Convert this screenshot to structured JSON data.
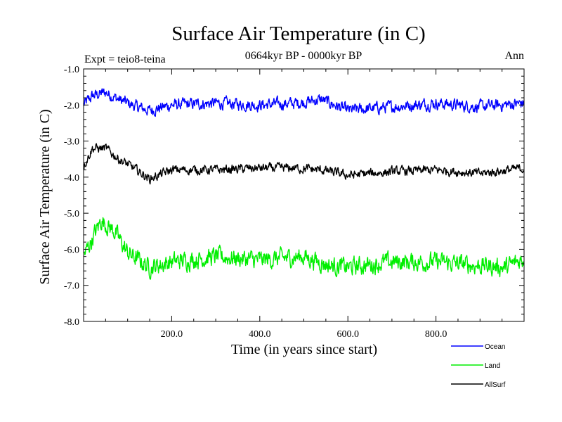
{
  "chart_data": {
    "type": "line",
    "title": "Surface Air Temperature (in C)",
    "subtitle": "0664kyr BP - 0000kyr BP",
    "experiment_label": "Expt = teio8-teina",
    "season_label": "Ann",
    "xlabel": "Time (in years since start)",
    "ylabel": "Surface Air Temperature (in C)",
    "xlim": [
      0,
      1000
    ],
    "ylim": [
      -8.0,
      -1.0
    ],
    "x_ticks": [
      200,
      400,
      600,
      800
    ],
    "x_tick_labels": [
      "200.0",
      "400.0",
      "600.0",
      "800.0"
    ],
    "y_ticks": [
      -1,
      -2,
      -3,
      -4,
      -5,
      -6,
      -7,
      -8
    ],
    "y_tick_labels": [
      "-1.0",
      "-2.0",
      "-3.0",
      "-4.0",
      "-5.0",
      "-6.0",
      "-7.0",
      "-8.0"
    ],
    "legend_position": "bottom-right, outside",
    "series": [
      {
        "name": "Ocean",
        "color": "#0000ff",
        "noise": 0.13,
        "trend": [
          [
            0,
            -2.0
          ],
          [
            20,
            -1.75
          ],
          [
            50,
            -1.65
          ],
          [
            80,
            -1.85
          ],
          [
            120,
            -2.05
          ],
          [
            150,
            -2.15
          ],
          [
            200,
            -2.0
          ],
          [
            300,
            -1.95
          ],
          [
            400,
            -2.0
          ],
          [
            480,
            -1.95
          ],
          [
            540,
            -1.85
          ],
          [
            600,
            -2.15
          ],
          [
            700,
            -2.05
          ],
          [
            800,
            -1.95
          ],
          [
            900,
            -2.05
          ],
          [
            1000,
            -1.95
          ]
        ]
      },
      {
        "name": "Land",
        "color": "#00ee00",
        "noise": 0.2,
        "trend": [
          [
            0,
            -6.2
          ],
          [
            20,
            -5.7
          ],
          [
            40,
            -5.2
          ],
          [
            70,
            -5.5
          ],
          [
            100,
            -6.1
          ],
          [
            150,
            -6.5
          ],
          [
            200,
            -6.35
          ],
          [
            300,
            -6.2
          ],
          [
            400,
            -6.3
          ],
          [
            500,
            -6.2
          ],
          [
            560,
            -6.45
          ],
          [
            600,
            -6.5
          ],
          [
            700,
            -6.35
          ],
          [
            800,
            -6.35
          ],
          [
            900,
            -6.45
          ],
          [
            960,
            -6.5
          ],
          [
            1000,
            -6.25
          ]
        ]
      },
      {
        "name": "AllSurf",
        "color": "#000000",
        "noise": 0.1,
        "trend": [
          [
            0,
            -3.7
          ],
          [
            20,
            -3.2
          ],
          [
            50,
            -3.2
          ],
          [
            80,
            -3.5
          ],
          [
            120,
            -3.8
          ],
          [
            150,
            -4.05
          ],
          [
            200,
            -3.8
          ],
          [
            300,
            -3.8
          ],
          [
            400,
            -3.75
          ],
          [
            480,
            -3.75
          ],
          [
            540,
            -3.8
          ],
          [
            600,
            -3.95
          ],
          [
            700,
            -3.85
          ],
          [
            800,
            -3.8
          ],
          [
            900,
            -3.9
          ],
          [
            1000,
            -3.75
          ]
        ]
      }
    ]
  }
}
